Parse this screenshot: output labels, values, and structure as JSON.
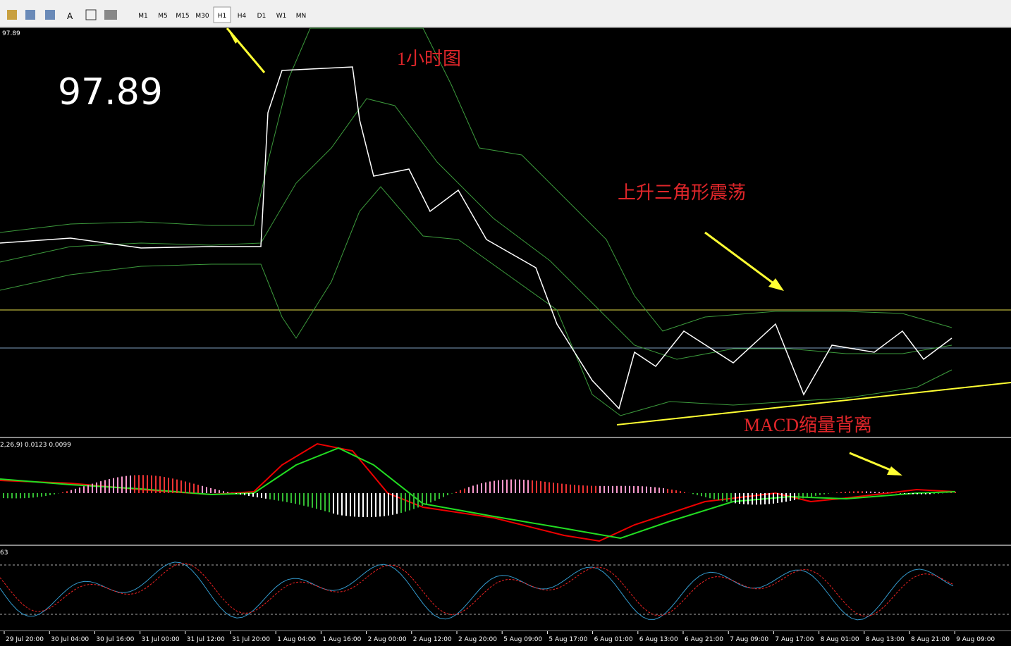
{
  "toolbar": {
    "timeframes": [
      "M1",
      "M5",
      "M15",
      "M30",
      "H1",
      "H4",
      "D1",
      "W1",
      "MN"
    ]
  },
  "chart": {
    "price_label": "97.89",
    "big_price": "97.89",
    "annotations": [
      "1小时图",
      "上升三角形震荡",
      "MACD缩量背离"
    ]
  },
  "macd": {
    "label": "2,26,9) 0.0123 0.0099"
  },
  "stochastic": {
    "label": "63"
  },
  "time_axis": [
    "29 Jul 20:00",
    "30 Jul 04:00",
    "30 Jul 16:00",
    "31 Jul 00:00",
    "31 Jul 12:00",
    "31 Jul 20:00",
    "1 Aug 04:00",
    "1 Aug 16:00",
    "2 Aug 00:00",
    "2 Aug 12:00",
    "2 Aug 20:00",
    "5 Aug 09:00",
    "5 Aug 17:00",
    "6 Aug 01:00",
    "6 Aug 13:00",
    "6 Aug 21:00",
    "7 Aug 09:00",
    "7 Aug 17:00",
    "8 Aug 01:00",
    "8 Aug 13:00",
    "8 Aug 21:00",
    "9 Aug 09:00"
  ]
}
